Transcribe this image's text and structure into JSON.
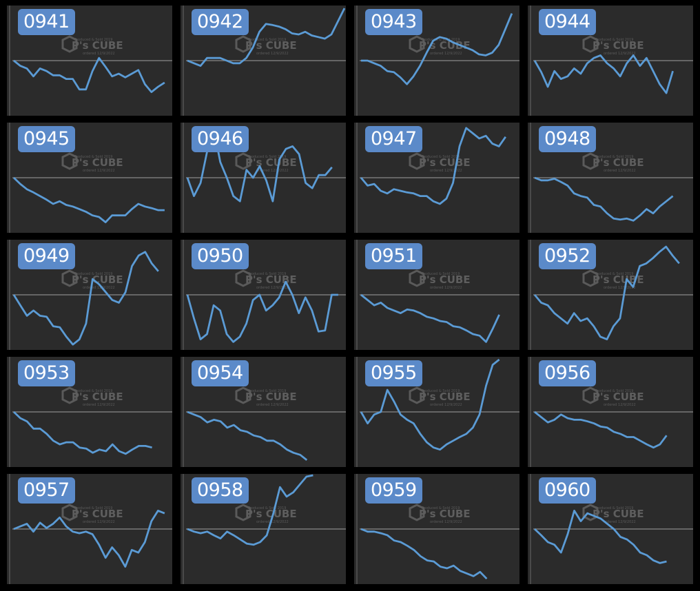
{
  "watermark": {
    "text": "P's CUBE",
    "line1": "Produced & Sold 2019",
    "line2": "ordered 12/9/2022"
  },
  "chart_data": [
    {
      "type": "line",
      "title": "0941",
      "ylim": [
        -1,
        1
      ],
      "reference_line": 0,
      "values": [
        0.0,
        -0.1,
        -0.15,
        -0.3,
        -0.15,
        -0.2,
        -0.28,
        -0.28,
        -0.35,
        -0.35,
        -0.55,
        -0.55,
        -0.2,
        0.05,
        -0.12,
        -0.3,
        -0.25,
        -0.32,
        -0.25,
        -0.18,
        -0.45,
        -0.6,
        -0.5,
        -0.42
      ]
    },
    {
      "type": "line",
      "title": "0942",
      "ylim": [
        -1,
        1
      ],
      "reference_line": 0,
      "values": [
        0.0,
        -0.05,
        -0.1,
        0.05,
        0.05,
        0.05,
        0.0,
        -0.05,
        -0.05,
        0.05,
        0.25,
        0.55,
        0.7,
        0.68,
        0.65,
        0.6,
        0.52,
        0.5,
        0.55,
        0.48,
        0.45,
        0.42,
        0.5,
        0.75,
        1.0
      ]
    },
    {
      "type": "line",
      "title": "0943",
      "ylim": [
        -1,
        1
      ],
      "reference_line": 0,
      "values": [
        0.0,
        0.0,
        -0.05,
        -0.1,
        -0.2,
        -0.22,
        -0.32,
        -0.45,
        -0.3,
        -0.1,
        0.15,
        0.38,
        0.45,
        0.42,
        0.35,
        0.3,
        0.25,
        0.2,
        0.12,
        0.1,
        0.15,
        0.3,
        0.6,
        0.9
      ]
    },
    {
      "type": "line",
      "title": "0944",
      "ylim": [
        -1,
        1
      ],
      "reference_line": 0,
      "values": [
        0.0,
        -0.22,
        -0.5,
        -0.2,
        -0.35,
        -0.3,
        -0.15,
        -0.25,
        -0.05,
        0.05,
        0.1,
        -0.05,
        -0.15,
        -0.3,
        -0.05,
        0.1,
        -0.1,
        0.05,
        -0.2,
        -0.45,
        -0.62,
        -0.2
      ]
    },
    {
      "type": "line",
      "title": "0945",
      "ylim": [
        -1,
        1
      ],
      "reference_line": 0,
      "values": [
        0.0,
        -0.12,
        -0.22,
        -0.28,
        -0.35,
        -0.42,
        -0.5,
        -0.45,
        -0.52,
        -0.55,
        -0.6,
        -0.65,
        -0.72,
        -0.75,
        -0.85,
        -0.72,
        -0.72,
        -0.72,
        -0.6,
        -0.5,
        -0.55,
        -0.58,
        -0.62,
        -0.62
      ]
    },
    {
      "type": "line",
      "title": "0946",
      "ylim": [
        -1,
        1
      ],
      "reference_line": 0,
      "values": [
        0.0,
        -0.35,
        -0.1,
        0.5,
        0.95,
        0.3,
        0.0,
        -0.35,
        -0.45,
        0.15,
        0.0,
        0.22,
        -0.05,
        -0.45,
        0.35,
        0.55,
        0.6,
        0.45,
        -0.1,
        -0.2,
        0.05,
        0.05,
        0.2
      ]
    },
    {
      "type": "line",
      "title": "0947",
      "ylim": [
        -1,
        1
      ],
      "reference_line": 0,
      "values": [
        0.0,
        -0.15,
        -0.12,
        -0.25,
        -0.3,
        -0.22,
        -0.25,
        -0.28,
        -0.3,
        -0.35,
        -0.35,
        -0.45,
        -0.5,
        -0.4,
        -0.1,
        0.6,
        0.95,
        0.85,
        0.75,
        0.8,
        0.65,
        0.6,
        0.78
      ]
    },
    {
      "type": "line",
      "title": "0948",
      "ylim": [
        -1,
        1
      ],
      "reference_line": 0,
      "values": [
        0.0,
        -0.05,
        -0.05,
        -0.02,
        -0.08,
        -0.15,
        -0.3,
        -0.35,
        -0.38,
        -0.52,
        -0.55,
        -0.68,
        -0.78,
        -0.8,
        -0.78,
        -0.82,
        -0.72,
        -0.6,
        -0.68,
        -0.55,
        -0.45,
        -0.35
      ]
    },
    {
      "type": "line",
      "title": "0949",
      "ylim": [
        -1,
        1
      ],
      "reference_line": 0,
      "values": [
        0.0,
        -0.2,
        -0.4,
        -0.3,
        -0.4,
        -0.42,
        -0.6,
        -0.62,
        -0.8,
        -0.95,
        -0.85,
        -0.55,
        0.3,
        0.2,
        0.05,
        -0.1,
        -0.15,
        0.05,
        0.55,
        0.75,
        0.82,
        0.6,
        0.45
      ]
    },
    {
      "type": "line",
      "title": "0950",
      "ylim": [
        -1,
        1
      ],
      "reference_line": 0,
      "values": [
        0.0,
        -0.45,
        -0.85,
        -0.75,
        -0.2,
        -0.3,
        -0.75,
        -0.9,
        -0.8,
        -0.55,
        -0.1,
        0.0,
        -0.3,
        -0.2,
        -0.05,
        0.25,
        0.0,
        -0.35,
        -0.05,
        -0.3,
        -0.7,
        -0.68,
        0.0,
        0.0
      ]
    },
    {
      "type": "line",
      "title": "0951",
      "ylim": [
        -1,
        1
      ],
      "reference_line": 0,
      "values": [
        0.0,
        -0.1,
        -0.2,
        -0.15,
        -0.25,
        -0.3,
        -0.35,
        -0.28,
        -0.3,
        -0.35,
        -0.42,
        -0.45,
        -0.5,
        -0.52,
        -0.6,
        -0.62,
        -0.68,
        -0.75,
        -0.78,
        -0.9,
        -0.65,
        -0.38
      ]
    },
    {
      "type": "line",
      "title": "0952",
      "ylim": [
        -1,
        1
      ],
      "reference_line": 0,
      "values": [
        0.0,
        -0.15,
        -0.2,
        -0.35,
        -0.45,
        -0.55,
        -0.35,
        -0.5,
        -0.45,
        -0.6,
        -0.8,
        -0.85,
        -0.6,
        -0.45,
        0.3,
        0.15,
        0.55,
        0.6,
        0.7,
        0.82,
        0.92,
        0.75,
        0.6
      ]
    },
    {
      "type": "line",
      "title": "0953",
      "ylim": [
        -1,
        1
      ],
      "reference_line": 0,
      "values": [
        0.0,
        -0.12,
        -0.18,
        -0.32,
        -0.32,
        -0.42,
        -0.55,
        -0.62,
        -0.58,
        -0.58,
        -0.68,
        -0.7,
        -0.78,
        -0.72,
        -0.75,
        -0.62,
        -0.75,
        -0.8,
        -0.72,
        -0.65,
        -0.65,
        -0.68
      ]
    },
    {
      "type": "line",
      "title": "0954",
      "ylim": [
        -1,
        1
      ],
      "reference_line": 0,
      "values": [
        0.0,
        -0.05,
        -0.1,
        -0.2,
        -0.15,
        -0.18,
        -0.3,
        -0.25,
        -0.35,
        -0.38,
        -0.45,
        -0.48,
        -0.55,
        -0.55,
        -0.62,
        -0.72,
        -0.78,
        -0.82,
        -0.92
      ]
    },
    {
      "type": "line",
      "title": "0955",
      "ylim": [
        -1,
        1
      ],
      "reference_line": 0,
      "values": [
        0.0,
        -0.22,
        -0.05,
        0.0,
        0.42,
        0.2,
        -0.05,
        -0.15,
        -0.22,
        -0.42,
        -0.58,
        -0.68,
        -0.72,
        -0.62,
        -0.55,
        -0.48,
        -0.42,
        -0.3,
        -0.05,
        0.5,
        0.9,
        1.0
      ]
    },
    {
      "type": "line",
      "title": "0956",
      "ylim": [
        -1,
        1
      ],
      "reference_line": 0,
      "values": [
        0.0,
        -0.1,
        -0.2,
        -0.15,
        -0.05,
        -0.12,
        -0.15,
        -0.15,
        -0.18,
        -0.22,
        -0.28,
        -0.3,
        -0.38,
        -0.42,
        -0.48,
        -0.48,
        -0.55,
        -0.62,
        -0.68,
        -0.62,
        -0.45
      ]
    },
    {
      "type": "line",
      "title": "0957",
      "ylim": [
        -1,
        1
      ],
      "reference_line": 0,
      "values": [
        0.0,
        0.05,
        0.1,
        -0.05,
        0.12,
        0.02,
        0.1,
        0.22,
        0.05,
        -0.05,
        -0.08,
        -0.05,
        -0.1,
        -0.3,
        -0.55,
        -0.35,
        -0.5,
        -0.72,
        -0.4,
        -0.45,
        -0.25,
        0.15,
        0.35,
        0.3
      ]
    },
    {
      "type": "line",
      "title": "0958",
      "ylim": [
        -1,
        1
      ],
      "reference_line": 0,
      "values": [
        0.0,
        -0.05,
        -0.08,
        -0.05,
        -0.12,
        -0.18,
        -0.05,
        -0.12,
        -0.2,
        -0.28,
        -0.3,
        -0.25,
        -0.12,
        0.3,
        0.8,
        0.62,
        0.7,
        0.85,
        1.0,
        1.05
      ]
    },
    {
      "type": "line",
      "title": "0959",
      "ylim": [
        -1,
        1
      ],
      "reference_line": 0,
      "values": [
        0.0,
        -0.05,
        -0.05,
        -0.08,
        -0.12,
        -0.22,
        -0.25,
        -0.32,
        -0.4,
        -0.52,
        -0.6,
        -0.62,
        -0.72,
        -0.75,
        -0.7,
        -0.8,
        -0.85,
        -0.9,
        -0.82,
        -0.95
      ]
    },
    {
      "type": "line",
      "title": "0960",
      "ylim": [
        -1,
        1
      ],
      "reference_line": 0,
      "values": [
        0.0,
        -0.12,
        -0.25,
        -0.3,
        -0.45,
        -0.1,
        0.35,
        0.15,
        0.3,
        0.25,
        0.2,
        0.1,
        0.0,
        -0.15,
        -0.2,
        -0.3,
        -0.45,
        -0.5,
        -0.6,
        -0.65,
        -0.62
      ]
    }
  ]
}
